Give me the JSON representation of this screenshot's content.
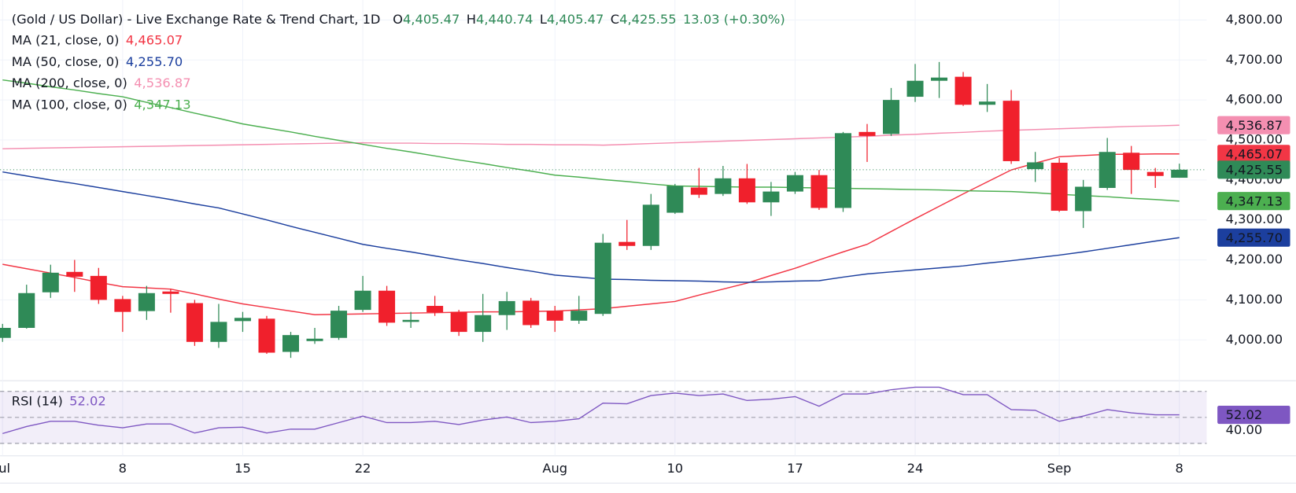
{
  "header": {
    "title": "(Gold / US Dollar) - Live Exchange Rate & Trend Chart, 1D",
    "ohlc": [
      {
        "label": "O",
        "value": "4,405.47"
      },
      {
        "label": "H",
        "value": "4,440.74"
      },
      {
        "label": "L",
        "value": "4,405.47"
      },
      {
        "label": "C",
        "value": "4,425.55"
      }
    ],
    "change": "13.03 (+0.30%)"
  },
  "chart_data": [
    {
      "type": "candlestick",
      "categories": [
        "Jul",
        null,
        null,
        null,
        null,
        "8",
        null,
        null,
        null,
        null,
        "15",
        null,
        null,
        null,
        null,
        "22",
        null,
        null,
        null,
        null,
        null,
        null,
        null,
        "Aug",
        null,
        null,
        null,
        null,
        "10",
        null,
        null,
        null,
        null,
        "17",
        null,
        null,
        null,
        null,
        "24",
        null,
        null,
        null,
        null,
        null,
        "Sep",
        null,
        null,
        null,
        null,
        "8"
      ],
      "open": [
        4005,
        4030,
        4119,
        4170,
        4160,
        4102,
        4072,
        4121,
        4092,
        3995,
        4047,
        4053,
        3970,
        3997,
        4005,
        4075,
        4123,
        4045,
        4085,
        4070,
        4020,
        4062,
        4098,
        4073,
        4048,
        4065,
        4245,
        4235,
        4318,
        4381,
        4365,
        4404,
        4344,
        4371,
        4412,
        4330,
        4520,
        4515,
        4608,
        4648,
        4658,
        4588,
        4598,
        4427,
        4443,
        4322,
        4380,
        4468,
        4420,
        4405.47
      ],
      "high": [
        4040,
        4138,
        4188,
        4200,
        4180,
        4110,
        4135,
        4128,
        4100,
        4090,
        4070,
        4060,
        4020,
        4030,
        4085,
        4160,
        4135,
        4070,
        4110,
        4075,
        4115,
        4120,
        4105,
        4085,
        4110,
        4265,
        4300,
        4365,
        4390,
        4430,
        4435,
        4440,
        4395,
        4420,
        4425,
        4520,
        4540,
        4630,
        4690,
        4695,
        4670,
        4640,
        4625,
        4470,
        4455,
        4400,
        4505,
        4485,
        4430,
        4440.74
      ],
      "low": [
        3995,
        4028,
        4105,
        4120,
        4090,
        4020,
        4050,
        4068,
        3985,
        3980,
        4020,
        3965,
        3955,
        3990,
        4000,
        4070,
        4035,
        4030,
        4060,
        4010,
        3995,
        4025,
        4030,
        4020,
        4040,
        4060,
        4225,
        4225,
        4315,
        4355,
        4360,
        4340,
        4310,
        4365,
        4325,
        4320,
        4445,
        4510,
        4595,
        4605,
        4585,
        4570,
        4440,
        4395,
        4320,
        4280,
        4375,
        4365,
        4380,
        4405.47
      ],
      "close": [
        4030,
        4117,
        4168,
        4158,
        4100,
        4070,
        4117,
        4115,
        3995,
        4045,
        4055,
        3968,
        4012,
        4003,
        4073,
        4123,
        4043,
        4050,
        4069,
        4020,
        4062,
        4097,
        4037,
        4048,
        4073,
        4243,
        4235,
        4338,
        4385,
        4363,
        4404,
        4344,
        4371,
        4412,
        4330,
        4517,
        4510,
        4600,
        4648,
        4656,
        4588,
        4596,
        4447,
        4444,
        4323,
        4383,
        4470,
        4425,
        4410,
        4425.55
      ],
      "up_color": "#2f8a57",
      "down_color": "#f0202c",
      "last_price_label": "4,425.55",
      "ylim": [
        3900,
        4850
      ],
      "yticks": [
        {
          "value": 4000,
          "label": "4,000.00"
        },
        {
          "value": 4100,
          "label": "4,100.00"
        },
        {
          "value": 4200,
          "label": "4,200.00"
        },
        {
          "value": 4300,
          "label": "4,300.00"
        },
        {
          "value": 4400,
          "label": "4,400.00"
        },
        {
          "value": 4500,
          "label": "4,500.00"
        },
        {
          "value": 4600,
          "label": "4,600.00"
        },
        {
          "value": 4700,
          "label": "4,700.00"
        },
        {
          "value": 4800,
          "label": "4,800.00"
        }
      ],
      "grid": true,
      "series": [
        {
          "name": "MA (21, close, 0)",
          "color": "#f23645",
          "value_label": "4,465.07",
          "values": [
            4189,
            4178,
            4167,
            4156,
            4144,
            4133,
            4130,
            4127,
            4115,
            4102,
            4090,
            4081,
            4072,
            4063,
            4064,
            4065,
            4066,
            4067,
            4068,
            4069,
            4070,
            4070,
            4071,
            4072,
            4075,
            4078,
            4084,
            4090,
            4096,
            4112,
            4127,
            4142,
            4161,
            4179,
            4200,
            4220,
            4239,
            4271,
            4303,
            4334,
            4365,
            4395,
            4425,
            4442,
            4458,
            4461,
            4464,
            4464,
            4465,
            4465.07
          ]
        },
        {
          "name": "MA (50, close, 0)",
          "color": "#1c3f9e",
          "value_label": "4,255.70",
          "values": [
            4420,
            4410,
            4400,
            4391,
            4381,
            4371,
            4361,
            4351,
            4340,
            4330,
            4315,
            4300,
            4284,
            4269,
            4254,
            4239,
            4229,
            4220,
            4210,
            4200,
            4191,
            4181,
            4172,
            4162,
            4157,
            4152,
            4151,
            4149,
            4148,
            4147,
            4145,
            4144,
            4145,
            4147,
            4148,
            4157,
            4165,
            4170,
            4175,
            4180,
            4185,
            4192,
            4198,
            4205,
            4212,
            4220,
            4229,
            4238,
            4247,
            4255.7
          ]
        },
        {
          "name": "MA (200, close, 0)",
          "color": "#f48fb1",
          "value_label": "4,536.87",
          "values": [
            4478,
            4479,
            4480,
            4481,
            4482,
            4483,
            4484,
            4485,
            4486,
            4487,
            4488,
            4489,
            4490,
            4491,
            4492,
            4493,
            4492,
            4492,
            4491,
            4491,
            4490,
            4489,
            4489,
            4488,
            4488,
            4487,
            4489,
            4491,
            4493,
            4495,
            4497,
            4499,
            4501,
            4503,
            4505,
            4507,
            4509,
            4512,
            4514,
            4517,
            4519,
            4522,
            4524,
            4526,
            4528,
            4530,
            4532,
            4534,
            4535,
            4536.87
          ]
        },
        {
          "name": "MA (100, close, 0)",
          "color": "#4caf50",
          "value_label": "4,347.13",
          "values": [
            4650,
            4642,
            4633,
            4625,
            4616,
            4608,
            4594,
            4581,
            4567,
            4554,
            4540,
            4530,
            4520,
            4509,
            4499,
            4489,
            4479,
            4470,
            4460,
            4450,
            4441,
            4431,
            4422,
            4412,
            4407,
            4401,
            4396,
            4390,
            4385,
            4384,
            4383,
            4382,
            4382,
            4381,
            4380,
            4379,
            4378,
            4377,
            4376,
            4375,
            4373,
            4372,
            4371,
            4368,
            4364,
            4361,
            4358,
            4354,
            4351,
            4347.13
          ]
        }
      ]
    },
    {
      "type": "line",
      "name": "RSI (14)",
      "color": "#7e57c2",
      "value_label": "52.02",
      "values": [
        37.6,
        43,
        47,
        47,
        44,
        42,
        45,
        45,
        38,
        42,
        42.5,
        38,
        41,
        41,
        46,
        51,
        46,
        46,
        47,
        44.5,
        48,
        50.3,
        46,
        47,
        49,
        61,
        60.5,
        66.8,
        68.7,
        66.8,
        68,
        63,
        64,
        66,
        58.6,
        68,
        68,
        71.3,
        73.2,
        73.2,
        67.5,
        67.5,
        56,
        55.5,
        47,
        51,
        56,
        53.5,
        52,
        52.02
      ],
      "ylim": [
        23,
        77.6
      ],
      "yticks": [
        {
          "value": 40,
          "label": "40.00"
        }
      ],
      "levels": [
        70,
        50,
        30
      ]
    }
  ]
}
